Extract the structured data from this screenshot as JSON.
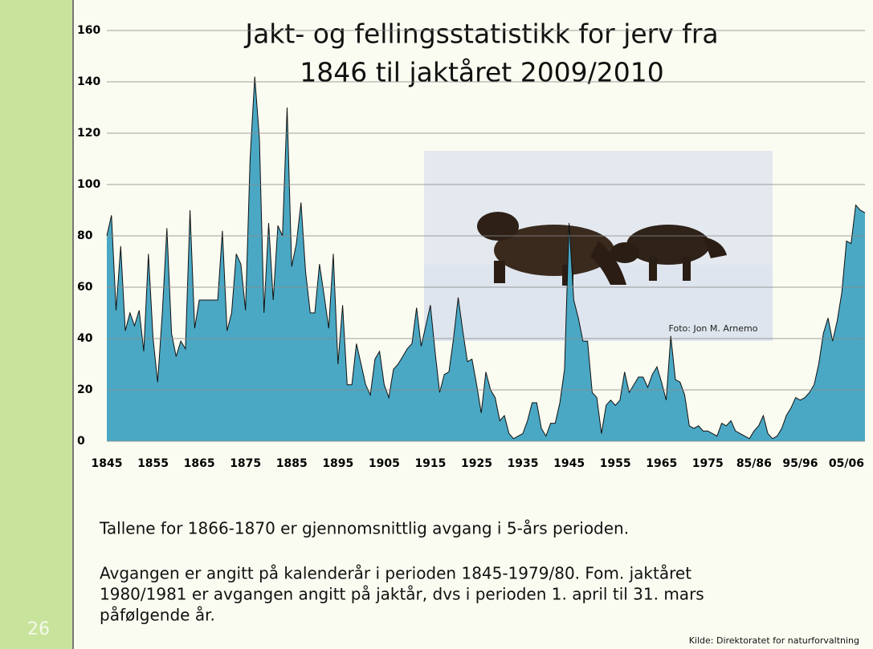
{
  "chart_data": {
    "type": "area",
    "title": [
      "Jakt- og fellingsstatistikk for jerv fra",
      "1846 til jaktåret 2009/2010"
    ],
    "categories": [
      "1845",
      null,
      null,
      null,
      null,
      null,
      null,
      null,
      null,
      null,
      "1855",
      null,
      null,
      null,
      null,
      null,
      null,
      null,
      null,
      null,
      "1865",
      null,
      null,
      null,
      null,
      null,
      null,
      null,
      null,
      null,
      "1875",
      null,
      null,
      null,
      null,
      null,
      null,
      null,
      null,
      null,
      "1885",
      null,
      null,
      null,
      null,
      null,
      null,
      null,
      null,
      null,
      "1895",
      null,
      null,
      null,
      null,
      null,
      null,
      null,
      null,
      null,
      "1905",
      null,
      null,
      null,
      null,
      null,
      null,
      null,
      null,
      null,
      "1915",
      null,
      null,
      null,
      null,
      null,
      null,
      null,
      null,
      null,
      "1925",
      null,
      null,
      null,
      null,
      null,
      null,
      null,
      null,
      null,
      "1935",
      null,
      null,
      null,
      null,
      null,
      null,
      null,
      null,
      null,
      "1945",
      null,
      null,
      null,
      null,
      null,
      null,
      null,
      null,
      null,
      "1955",
      null,
      null,
      null,
      null,
      null,
      null,
      null,
      null,
      null,
      "1965",
      null,
      null,
      null,
      null,
      null,
      null,
      null,
      null,
      null,
      "1975",
      null,
      null,
      null,
      null,
      null,
      null,
      null,
      null,
      null,
      "85/86",
      null,
      null,
      null,
      null,
      null,
      null,
      null,
      null,
      null,
      "95/96",
      null,
      null,
      null,
      null,
      null,
      null,
      null,
      null,
      null,
      "05/06",
      null,
      null,
      null,
      null
    ],
    "values": [
      80,
      88,
      51,
      76,
      43,
      50,
      45,
      51,
      35,
      73,
      40,
      23,
      50,
      83,
      42,
      33,
      39,
      36,
      90,
      44,
      55,
      55,
      55,
      55,
      55,
      82,
      43,
      50,
      73,
      69,
      51,
      110,
      142,
      118,
      50,
      85,
      55,
      84,
      80,
      130,
      68,
      77,
      93,
      66,
      50,
      50,
      69,
      57,
      44,
      73,
      30,
      53,
      22,
      22,
      38,
      30,
      22,
      18,
      32,
      35,
      22,
      17,
      28,
      30,
      33,
      36,
      38,
      52,
      37,
      45,
      53,
      35,
      19,
      26,
      27,
      40,
      56,
      43,
      31,
      32,
      22,
      11,
      27,
      20,
      17,
      8,
      10,
      3,
      1,
      2,
      3,
      8,
      15,
      15,
      5,
      2,
      7,
      7,
      15,
      28,
      85,
      55,
      48,
      39,
      39,
      19,
      17,
      3,
      14,
      16,
      14,
      16,
      27,
      19,
      22,
      25,
      25,
      21,
      26,
      29,
      23,
      16,
      41,
      24,
      23,
      18,
      6,
      5,
      6,
      4,
      4,
      3,
      2,
      7,
      6,
      8,
      4,
      3,
      2,
      1,
      4,
      6,
      10,
      3,
      1,
      2,
      5,
      10,
      13,
      17,
      16,
      17,
      19,
      22,
      30,
      42,
      48,
      39,
      47,
      58,
      78,
      77,
      92,
      90,
      89
    ],
    "color": "#4aa8c4",
    "ylim": [
      0,
      160
    ],
    "yticks": [
      0,
      20,
      40,
      60,
      80,
      100,
      120,
      140,
      160
    ],
    "grid": true,
    "photo_credit": "Foto: Jon M. Arnemo"
  },
  "notes": [
    "Tallene for  1866-1870 er gjennomsnittlig avgang i 5-års perioden.",
    "Avgangen er angitt på kalenderår i perioden 1845-1979/80. Fom. jaktåret",
    "1980/1981 er avgangen angitt på jaktår, dvs i perioden 1. april til 31. mars",
    "påfølgende år."
  ],
  "source": "Kilde: Direktoratet for naturforvaltning",
  "slide_number": "26"
}
